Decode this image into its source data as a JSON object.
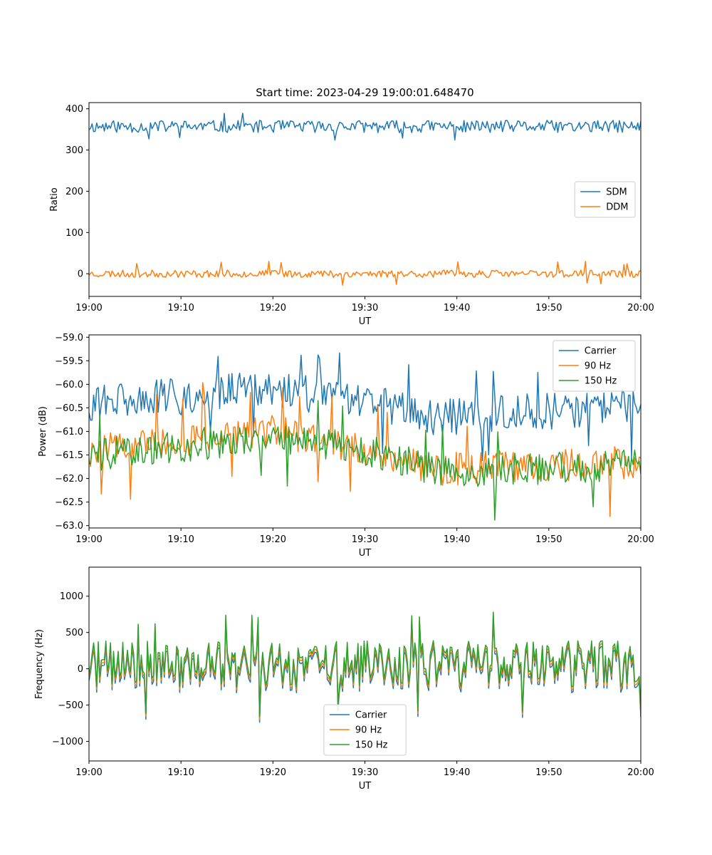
{
  "chart_data": [
    {
      "type": "line",
      "title": "Start time: 2023-04-29 19:00:01.648470",
      "xlabel": "UT",
      "ylabel": "Ratio",
      "xlim": [
        "19:00",
        "20:00"
      ],
      "ylim": [
        -55,
        415
      ],
      "x_ticks": [
        "19:00",
        "19:10",
        "19:20",
        "19:30",
        "19:40",
        "19:50",
        "20:00"
      ],
      "y_ticks": [
        0,
        100,
        200,
        300,
        400
      ],
      "y_tick_labels": [
        "0",
        "100",
        "200",
        "300",
        "400"
      ],
      "grid": false,
      "legend_position": "center-right",
      "series": [
        {
          "name": "SDM",
          "color": "#1f77b4",
          "mean": 357,
          "amplitude": 15,
          "spike": 37,
          "seed": 11
        },
        {
          "name": "DDM",
          "color": "#ff7f0e",
          "mean": 0,
          "amplitude": 9,
          "spike": 30,
          "seed": 23
        }
      ]
    },
    {
      "type": "line",
      "title": "",
      "xlabel": "UT",
      "ylabel": "Power (dB)",
      "xlim": [
        "19:00",
        "20:00"
      ],
      "ylim": [
        -63.05,
        -58.95
      ],
      "x_ticks": [
        "19:00",
        "19:10",
        "19:20",
        "19:30",
        "19:40",
        "19:50",
        "20:00"
      ],
      "y_ticks": [
        -59.0,
        -59.5,
        -60.0,
        -60.5,
        -61.0,
        -61.5,
        -62.0,
        -62.5,
        -63.0
      ],
      "y_tick_labels": [
        "−59.0",
        "−59.5",
        "−60.0",
        "−60.5",
        "−61.0",
        "−61.5",
        "−62.0",
        "−62.5",
        "−63.0"
      ],
      "grid": false,
      "legend_position": "upper-right",
      "series": [
        {
          "name": "Carrier",
          "color": "#1f77b4",
          "trend": [
            [
              0,
              -60.4
            ],
            [
              20,
              -60.1
            ],
            [
              30,
              -60.4
            ],
            [
              38,
              -60.7
            ],
            [
              60,
              -60.45
            ]
          ],
          "amplitude": 0.4,
          "spike": 1.1,
          "seed": 31
        },
        {
          "name": "90 Hz",
          "color": "#ff7f0e",
          "trend": [
            [
              0,
              -61.4
            ],
            [
              20,
              -61.0
            ],
            [
              30,
              -61.4
            ],
            [
              38,
              -61.8
            ],
            [
              60,
              -61.65
            ]
          ],
          "amplitude": 0.35,
          "spike": 1.2,
          "seed": 47
        },
        {
          "name": "150 Hz",
          "color": "#2ca02c",
          "trend": [
            [
              0,
              -61.5
            ],
            [
              20,
              -61.1
            ],
            [
              30,
              -61.4
            ],
            [
              38,
              -61.85
            ],
            [
              60,
              -61.7
            ]
          ],
          "amplitude": 0.35,
          "spike": 1.1,
          "seed": 59
        }
      ]
    },
    {
      "type": "line",
      "title": "",
      "xlabel": "UT",
      "ylabel": "Frequency (Hz)",
      "xlim": [
        "19:00",
        "20:00"
      ],
      "ylim": [
        -1270,
        1400
      ],
      "x_ticks": [
        "19:00",
        "19:10",
        "19:20",
        "19:30",
        "19:40",
        "19:50",
        "20:00"
      ],
      "y_ticks": [
        1000,
        500,
        0,
        -500,
        -1000
      ],
      "y_tick_labels": [
        "1000",
        "500",
        "0",
        "−500",
        "−1000"
      ],
      "grid": false,
      "legend_position": "lower-center",
      "base": {
        "mean": 50,
        "amplitude": 320,
        "spike": 750,
        "seed": 71
      },
      "series": [
        {
          "name": "Carrier",
          "color": "#1f77b4",
          "offset": -60,
          "gain": 1.0
        },
        {
          "name": "90 Hz",
          "color": "#ff7f0e",
          "offset": -20,
          "gain": 1.0
        },
        {
          "name": "150 Hz",
          "color": "#2ca02c",
          "offset": 20,
          "gain": 1.0
        }
      ]
    }
  ]
}
